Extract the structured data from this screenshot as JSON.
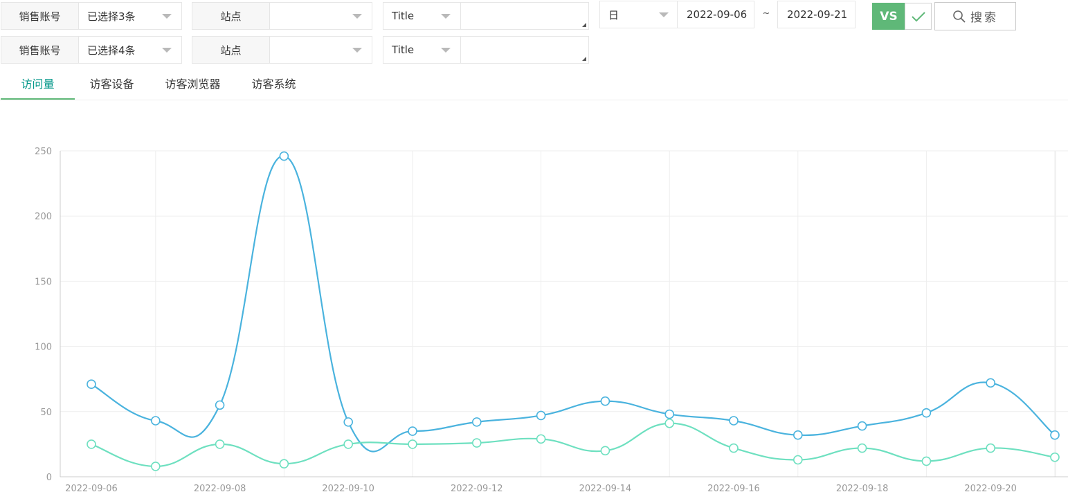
{
  "filters": {
    "rows": [
      {
        "account_label": "销售账号",
        "account_value": "已选择3条",
        "site_label": "站点",
        "site_value": "",
        "title_type": "Title",
        "title_value": ""
      },
      {
        "account_label": "销售账号",
        "account_value": "已选择4条",
        "site_label": "站点",
        "site_value": "",
        "title_type": "Title",
        "title_value": ""
      }
    ],
    "granularity": "日",
    "date_from": "2022-09-06",
    "date_separator": "~",
    "date_to": "2022-09-21",
    "vs_label": "VS",
    "vs_checked": true,
    "search_label": "搜索"
  },
  "tabs": [
    {
      "label": "访问量",
      "active": true
    },
    {
      "label": "访客设备",
      "active": false
    },
    {
      "label": "访客浏览器",
      "active": false
    },
    {
      "label": "访客系统",
      "active": false
    }
  ],
  "chart_data": {
    "type": "line",
    "smooth": true,
    "x": [
      "2022-09-06",
      "2022-09-07",
      "2022-09-08",
      "2022-09-09",
      "2022-09-10",
      "2022-09-11",
      "2022-09-12",
      "2022-09-13",
      "2022-09-14",
      "2022-09-15",
      "2022-09-16",
      "2022-09-17",
      "2022-09-18",
      "2022-09-19",
      "2022-09-20",
      "2022-09-21"
    ],
    "x_tick_labels": [
      "2022-09-06",
      "2022-09-08",
      "2022-09-10",
      "2022-09-12",
      "2022-09-14",
      "2022-09-16",
      "2022-09-18",
      "2022-09-20"
    ],
    "y_ticks": [
      0,
      50,
      100,
      150,
      200,
      250
    ],
    "ylim": [
      0,
      250
    ],
    "grid": true,
    "series": [
      {
        "color": "#4ab3de",
        "values": [
          71,
          43,
          55,
          246,
          42,
          35,
          42,
          47,
          58,
          48,
          43,
          32,
          39,
          49,
          72,
          32
        ]
      },
      {
        "color": "#6ee0c0",
        "values": [
          25,
          8,
          25,
          10,
          25,
          25,
          26,
          29,
          20,
          41,
          22,
          13,
          22,
          12,
          22,
          15
        ]
      }
    ]
  }
}
